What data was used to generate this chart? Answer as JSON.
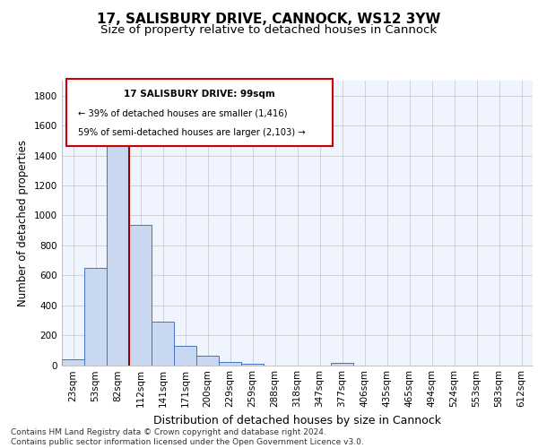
{
  "title1": "17, SALISBURY DRIVE, CANNOCK, WS12 3YW",
  "title2": "Size of property relative to detached houses in Cannock",
  "xlabel": "Distribution of detached houses by size in Cannock",
  "ylabel": "Number of detached properties",
  "bin_labels": [
    "23sqm",
    "53sqm",
    "82sqm",
    "112sqm",
    "141sqm",
    "171sqm",
    "200sqm",
    "229sqm",
    "259sqm",
    "288sqm",
    "318sqm",
    "347sqm",
    "377sqm",
    "406sqm",
    "435sqm",
    "465sqm",
    "494sqm",
    "524sqm",
    "553sqm",
    "583sqm",
    "612sqm"
  ],
  "bar_values": [
    38,
    650,
    1475,
    935,
    290,
    128,
    62,
    22,
    10,
    0,
    0,
    0,
    12,
    0,
    0,
    0,
    0,
    0,
    0,
    0,
    0
  ],
  "bar_color": "#c8d8f0",
  "bar_edge_color": "#4472c4",
  "vline_color": "#a00000",
  "ylim": [
    0,
    1900
  ],
  "yticks": [
    0,
    200,
    400,
    600,
    800,
    1000,
    1200,
    1400,
    1600,
    1800
  ],
  "annotation_line1": "17 SALISBURY DRIVE: 99sqm",
  "annotation_line2": "← 39% of detached houses are smaller (1,416)",
  "annotation_line3": "59% of semi-detached houses are larger (2,103) →",
  "annotation_box_color": "#cc0000",
  "footer_text": "Contains HM Land Registry data © Crown copyright and database right 2024.\nContains public sector information licensed under the Open Government Licence v3.0.",
  "bg_color": "#f0f4ff",
  "grid_color": "#cccccc",
  "title1_fontsize": 11,
  "title2_fontsize": 9.5,
  "ylabel_fontsize": 8.5,
  "xlabel_fontsize": 9,
  "tick_fontsize": 7.5,
  "footer_fontsize": 6.5
}
